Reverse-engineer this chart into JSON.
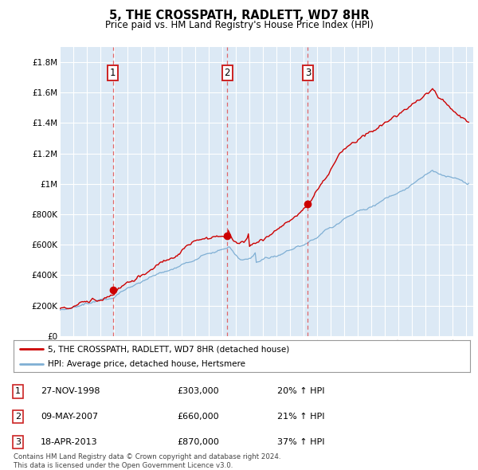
{
  "title": "5, THE CROSSPATH, RADLETT, WD7 8HR",
  "subtitle": "Price paid vs. HM Land Registry's House Price Index (HPI)",
  "background_color": "#dce9f5",
  "ylim": [
    0,
    1900000
  ],
  "yticks": [
    0,
    200000,
    400000,
    600000,
    800000,
    1000000,
    1200000,
    1400000,
    1600000,
    1800000
  ],
  "ytick_labels": [
    "£0",
    "£200K",
    "£400K",
    "£600K",
    "£800K",
    "£1M",
    "£1.2M",
    "£1.4M",
    "£1.6M",
    "£1.8M"
  ],
  "xlim_start": 1995.0,
  "xlim_end": 2025.5,
  "sale_dates": [
    1998.91,
    2007.36,
    2013.3
  ],
  "sale_prices": [
    303000,
    660000,
    870000
  ],
  "sale_labels": [
    "1",
    "2",
    "3"
  ],
  "red_line_color": "#cc0000",
  "blue_line_color": "#7fafd4",
  "legend_entries": [
    "5, THE CROSSPATH, RADLETT, WD7 8HR (detached house)",
    "HPI: Average price, detached house, Hertsmere"
  ],
  "table_rows": [
    [
      "1",
      "27-NOV-1998",
      "£303,000",
      "20% ↑ HPI"
    ],
    [
      "2",
      "09-MAY-2007",
      "£660,000",
      "21% ↑ HPI"
    ],
    [
      "3",
      "18-APR-2013",
      "£870,000",
      "37% ↑ HPI"
    ]
  ],
  "footer": "Contains HM Land Registry data © Crown copyright and database right 2024.\nThis data is licensed under the Open Government Licence v3.0.",
  "grid_color": "#ffffff",
  "dashed_line_color": "#e06060"
}
